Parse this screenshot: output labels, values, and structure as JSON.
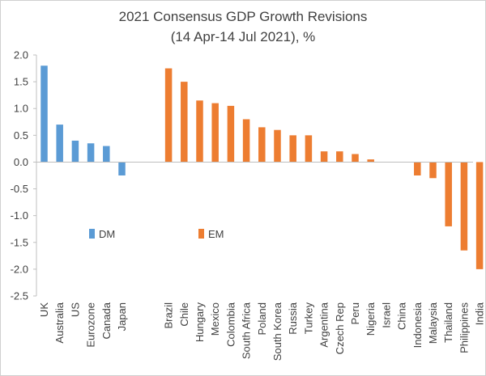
{
  "chart_data": {
    "type": "bar",
    "title": "2021 Consensus GDP Growth Revisions",
    "subtitle": "(14 Apr-14 Jul 2021), %",
    "xlabel": "",
    "ylabel": "",
    "ylim": [
      -2.5,
      2.0
    ],
    "yticks": [
      "2.0",
      "1.5",
      "1.0",
      "0.5",
      "0.0",
      "-0.5",
      "-1.0",
      "-1.5",
      "-2.0",
      "-2.5"
    ],
    "grid": false,
    "legend_position": "lower-left",
    "series": [
      {
        "name": "DM",
        "color": "#5B9BD5",
        "categories": [
          "UK",
          "Australia",
          "US",
          "Eurozone",
          "Canada",
          "Japan"
        ],
        "values": [
          1.8,
          0.7,
          0.4,
          0.35,
          0.3,
          -0.25
        ]
      },
      {
        "name": "EM",
        "color": "#ED7D31",
        "categories": [
          "Brazil",
          "Chile",
          "Hungary",
          "Mexico",
          "Colombia",
          "South Africa",
          "Poland",
          "South Korea",
          "Russia",
          "Turkey",
          "Argentina",
          "Czech Rep",
          "Peru",
          "Nigeria",
          "Israel",
          "China",
          "Indonesia",
          "Malaysia",
          "Thailand",
          "Philippines",
          "India"
        ],
        "values": [
          1.75,
          1.5,
          1.15,
          1.1,
          1.05,
          0.8,
          0.65,
          0.6,
          0.5,
          0.5,
          0.2,
          0.2,
          0.15,
          0.05,
          0.0,
          0.0,
          -0.25,
          -0.3,
          -1.2,
          -1.65,
          -2.0
        ]
      }
    ]
  }
}
